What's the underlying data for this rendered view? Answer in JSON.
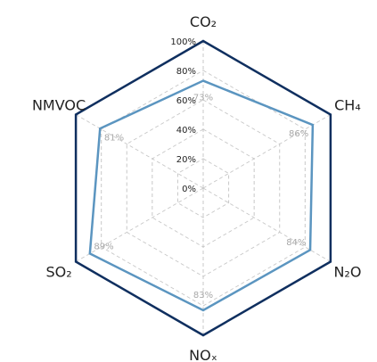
{
  "chart_data": {
    "type": "radar",
    "axes": [
      {
        "key": "co2",
        "label": "CO₂"
      },
      {
        "key": "ch4",
        "label": "CH₄"
      },
      {
        "key": "n2o",
        "label": "N₂O"
      },
      {
        "key": "nox",
        "label": "NOₓ"
      },
      {
        "key": "so2",
        "label": "SO₂"
      },
      {
        "key": "nmvoc",
        "label": "NMVOC"
      }
    ],
    "rticks": [
      0,
      20,
      40,
      60,
      80,
      100
    ],
    "rtick_labels": [
      "0%",
      "20%",
      "40%",
      "60%",
      "80%",
      "100%"
    ],
    "rlim": [
      0,
      100
    ],
    "grid": true,
    "series": [
      {
        "values": [
          73,
          86,
          84,
          83,
          89,
          81
        ],
        "value_labels": [
          "73%",
          "86%",
          "84%",
          "83%",
          "89%",
          "81%"
        ],
        "color": "#5b95c0"
      }
    ],
    "outer_ring_color": "#0f2f5f"
  }
}
